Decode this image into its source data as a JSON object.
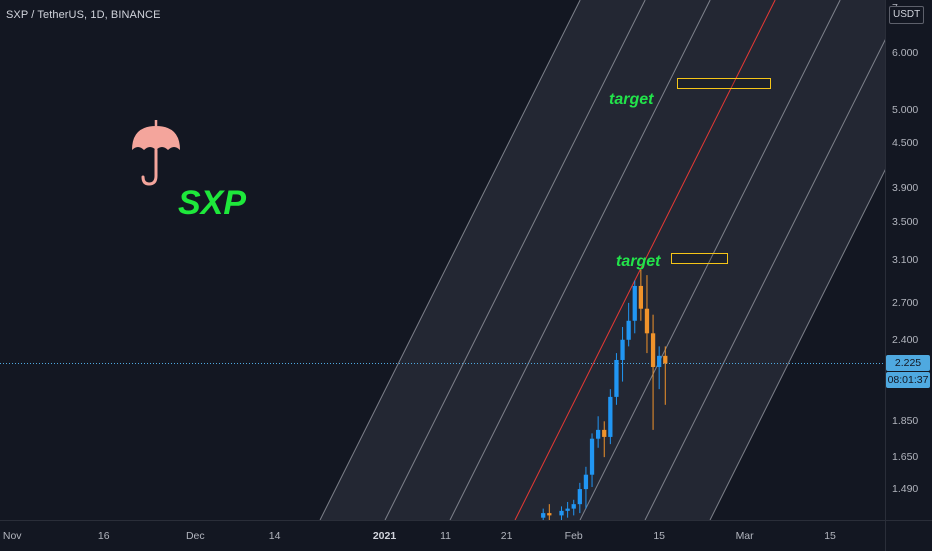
{
  "header": {
    "symbol_title": "SXP / TetherUS, 1D, BINANCE",
    "currency": "USDT"
  },
  "price_tags": {
    "last_price": "2.225",
    "countdown": "08:01:37"
  },
  "annotations": {
    "target_upper": "target",
    "target_lower": "target",
    "coin_label": "SXP"
  },
  "icons": {
    "coin_logo": "umbrella-icon"
  },
  "colors": {
    "background": "#131722",
    "up_candle": "#2196f3",
    "down_candle": "#f0932b",
    "channel_fill": "#2a2e39",
    "channel_line": "#9598a1",
    "center_line": "#e53935",
    "label_green": "#22e34a",
    "target_box": "#f5c518",
    "price_line": "#4fa9e0"
  },
  "chart_data": {
    "type": "candlestick",
    "title": "SXP / TetherUS, 1D, BINANCE",
    "y_scale": "log",
    "ylim": [
      1.35,
      7.1
    ],
    "y_ticks": [
      "7",
      "6.000",
      "5.000",
      "4.500",
      "3.900",
      "3.500",
      "3.100",
      "2.700",
      "2.400",
      "2.225",
      "1.850",
      "1.650",
      "1.490"
    ],
    "x_ticks": [
      {
        "label": "Nov",
        "date": "2020-11-01"
      },
      {
        "label": "16",
        "date": "2020-11-16"
      },
      {
        "label": "Dec",
        "date": "2020-12-01"
      },
      {
        "label": "14",
        "date": "2020-12-14"
      },
      {
        "label": "2021",
        "date": "2021-01-01"
      },
      {
        "label": "11",
        "date": "2021-01-11"
      },
      {
        "label": "21",
        "date": "2021-01-21"
      },
      {
        "label": "Feb",
        "date": "2021-02-01"
      },
      {
        "label": "15",
        "date": "2021-02-15"
      },
      {
        "label": "Mar",
        "date": "2021-03-01"
      },
      {
        "label": "15",
        "date": "2021-03-15"
      }
    ],
    "xlim": [
      "2020-10-30",
      "2021-03-24"
    ],
    "last_price": 2.225,
    "candles": [
      {
        "date": "2021-01-27",
        "open": 1.36,
        "high": 1.4,
        "low": 1.32,
        "close": 1.38
      },
      {
        "date": "2021-01-28",
        "open": 1.38,
        "high": 1.42,
        "low": 1.35,
        "close": 1.37
      },
      {
        "date": "2021-01-30",
        "open": 1.37,
        "high": 1.41,
        "low": 1.34,
        "close": 1.39
      },
      {
        "date": "2021-01-31",
        "open": 1.39,
        "high": 1.43,
        "low": 1.36,
        "close": 1.4
      },
      {
        "date": "2021-02-01",
        "open": 1.4,
        "high": 1.44,
        "low": 1.37,
        "close": 1.42
      },
      {
        "date": "2021-02-02",
        "open": 1.42,
        "high": 1.52,
        "low": 1.38,
        "close": 1.49
      },
      {
        "date": "2021-02-03",
        "open": 1.49,
        "high": 1.6,
        "low": 1.4,
        "close": 1.56
      },
      {
        "date": "2021-02-04",
        "open": 1.56,
        "high": 1.78,
        "low": 1.5,
        "close": 1.75
      },
      {
        "date": "2021-02-05",
        "open": 1.75,
        "high": 1.88,
        "low": 1.7,
        "close": 1.8
      },
      {
        "date": "2021-02-06",
        "open": 1.8,
        "high": 1.85,
        "low": 1.65,
        "close": 1.76
      },
      {
        "date": "2021-02-07",
        "open": 1.76,
        "high": 2.05,
        "low": 1.72,
        "close": 2.0
      },
      {
        "date": "2021-02-08",
        "open": 2.0,
        "high": 2.3,
        "low": 1.95,
        "close": 2.25
      },
      {
        "date": "2021-02-09",
        "open": 2.25,
        "high": 2.5,
        "low": 2.1,
        "close": 2.4
      },
      {
        "date": "2021-02-10",
        "open": 2.4,
        "high": 2.7,
        "low": 2.35,
        "close": 2.55
      },
      {
        "date": "2021-02-11",
        "open": 2.55,
        "high": 2.9,
        "low": 2.45,
        "close": 2.85
      },
      {
        "date": "2021-02-12",
        "open": 2.85,
        "high": 3.0,
        "low": 2.55,
        "close": 2.65
      },
      {
        "date": "2021-02-13",
        "open": 2.65,
        "high": 2.95,
        "low": 2.3,
        "close": 2.45
      },
      {
        "date": "2021-02-14",
        "open": 2.45,
        "high": 2.6,
        "low": 1.8,
        "close": 2.2
      },
      {
        "date": "2021-02-15",
        "open": 2.2,
        "high": 2.35,
        "low": 2.05,
        "close": 2.28
      },
      {
        "date": "2021-02-16",
        "open": 2.28,
        "high": 2.35,
        "low": 1.95,
        "close": 2.225
      }
    ],
    "channel": {
      "center": {
        "start": {
          "date": "2021-01-22",
          "price": 1.33
        },
        "end": {
          "date": "2021-03-06",
          "price": 7.1
        }
      },
      "band_lines": [
        -3,
        -2,
        -1,
        1,
        2,
        3
      ]
    },
    "target_zones": [
      {
        "date_start": "2021-02-18",
        "date_end": "2021-03-05",
        "price": 5.45
      },
      {
        "date_start": "2021-02-17",
        "date_end": "2021-02-26",
        "price": 3.12
      }
    ]
  }
}
